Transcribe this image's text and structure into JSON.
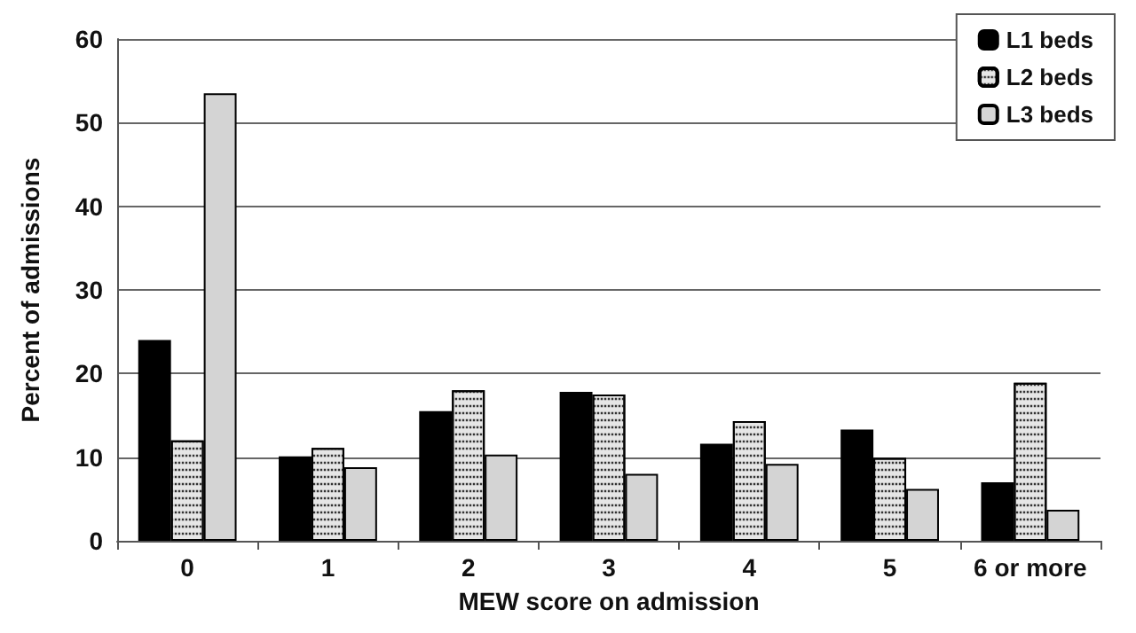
{
  "chart_data": {
    "type": "bar",
    "xlabel": "MEW score on admission",
    "ylabel": "Percent of admissions",
    "categories": [
      "0",
      "1",
      "2",
      "3",
      "4",
      "5",
      "6 or more"
    ],
    "series": [
      {
        "name": "L1 beds",
        "color": "#000000",
        "values": [
          24,
          10.1,
          15.5,
          17.8,
          11.6,
          13.3,
          7
        ]
      },
      {
        "name": "L2 beds",
        "color": "#e6e6e6",
        "values": [
          12,
          11.1,
          18,
          17.5,
          14.3,
          9.9,
          18.9
        ]
      },
      {
        "name": "L3 beds",
        "color": "#d4d4d4",
        "values": [
          53.5,
          8.8,
          10.3,
          8,
          9.2,
          6.2,
          3.7
        ]
      }
    ],
    "ylim": [
      0,
      60
    ],
    "yticks": [
      0,
      10,
      20,
      30,
      40,
      50,
      60
    ],
    "grid": "y",
    "legend": "top right"
  }
}
